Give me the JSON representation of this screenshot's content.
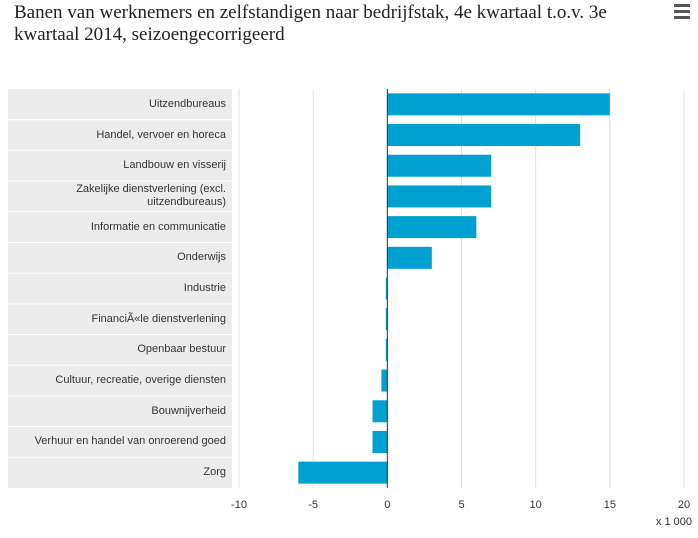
{
  "chart_data": {
    "type": "hbar",
    "title": "Banen van werknemers en zelfstandigen naar bedrijfstak, 4e kwartaal t.o.v. 3e kwartaal 2014, seizoengecorrigeerd",
    "categories": [
      "Uitzendbureaus",
      "Handel, vervoer en horeca",
      "Landbouw en visserij",
      "Zakelijke dienstverlening (excl. uitzendbureaus)",
      "Informatie en communicatie",
      "Onderwijs",
      "Industrie",
      "FinanciÃ«le dienstverlening",
      "Openbaar bestuur",
      "Cultuur, recreatie, overige diensten",
      "Bouwnijverheid",
      "Verhuur en handel van onroerend goed",
      "Zorg"
    ],
    "values": [
      15,
      13,
      7,
      7,
      6,
      3,
      -0.1,
      -0.1,
      -0.1,
      -0.4,
      -1,
      -1,
      -6
    ],
    "color": "#00a0d0",
    "xlim": [
      -10,
      20
    ],
    "xticks": [
      -10,
      -5,
      0,
      5,
      10,
      15,
      20
    ],
    "unit_label": "x 1 000",
    "grid": true
  }
}
